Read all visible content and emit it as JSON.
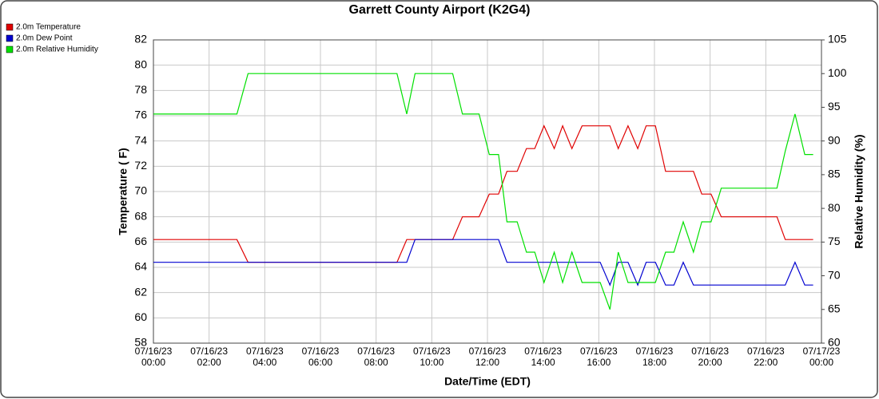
{
  "chart_data": {
    "type": "line",
    "title": "Garrett County Airport (K2G4)",
    "xlabel": "Date/Time (EDT)",
    "ylabel": "Temperature ( F)",
    "y2label": "Relative Humidity (%)",
    "legend": "top-left",
    "grid": true,
    "x": [
      "07/16/23 00:00",
      "07/16/23 03:00",
      "07/16/23 03:24",
      "07/16/23 08:45",
      "07/16/23 09:06",
      "07/16/23 09:24",
      "07/16/23 10:45",
      "07/16/23 11:06",
      "07/16/23 11:42",
      "07/16/23 12:04",
      "07/16/23 12:24",
      "07/16/23 12:42",
      "07/16/23 13:04",
      "07/16/23 13:24",
      "07/16/23 13:42",
      "07/16/23 14:02",
      "07/16/23 14:24",
      "07/16/23 14:42",
      "07/16/23 15:02",
      "07/16/23 15:24",
      "07/16/23 16:03",
      "07/16/23 16:24",
      "07/16/23 16:42",
      "07/16/23 17:03",
      "07/16/23 17:24",
      "07/16/23 17:42",
      "07/16/23 18:02",
      "07/16/23 18:24",
      "07/16/23 18:42",
      "07/16/23 19:02",
      "07/16/23 19:24",
      "07/16/23 19:42",
      "07/16/23 20:02",
      "07/16/23 20:24",
      "07/16/23 22:24",
      "07/16/23 22:42",
      "07/16/23 23:03",
      "07/16/23 23:24",
      "07/16/23 23:42"
    ],
    "series": [
      {
        "name": "2.0m Temperature",
        "color": "#e00000",
        "values": [
          66.2,
          66.2,
          64.4,
          64.4,
          66.2,
          66.2,
          66.2,
          68,
          68,
          69.8,
          69.8,
          71.6,
          71.6,
          73.4,
          73.4,
          75.2,
          73.4,
          75.2,
          73.4,
          75.2,
          75.2,
          75.2,
          73.4,
          75.2,
          73.4,
          75.2,
          75.2,
          71.6,
          71.6,
          71.6,
          71.6,
          69.8,
          69.8,
          68,
          68,
          66.2,
          66.2,
          66.2,
          66.2
        ]
      },
      {
        "name": "2.0m Dew Point",
        "color": "#0000d0",
        "values": [
          64.4,
          64.4,
          64.4,
          64.4,
          64.4,
          66.2,
          66.2,
          66.2,
          66.2,
          66.2,
          66.2,
          64.4,
          64.4,
          64.4,
          64.4,
          64.4,
          64.4,
          64.4,
          64.4,
          64.4,
          64.4,
          62.6,
          64.4,
          64.4,
          62.6,
          64.4,
          64.4,
          62.6,
          62.6,
          64.4,
          62.6,
          62.6,
          62.6,
          62.6,
          62.6,
          62.6,
          64.4,
          62.6,
          62.6
        ]
      },
      {
        "name": "2.0m Relative Humidity",
        "color": "#00e000",
        "axis": "y2",
        "values": [
          94,
          94,
          100,
          100,
          94,
          100,
          100,
          94,
          94,
          88,
          88,
          78,
          78,
          73.5,
          73.5,
          69,
          73.5,
          69,
          73.5,
          69,
          69,
          65,
          73.5,
          69,
          69,
          69,
          69,
          73.5,
          73.5,
          78,
          73.5,
          78,
          78,
          83,
          83,
          88.5,
          94,
          88,
          88
        ]
      }
    ],
    "xlim": [
      "07/16/23 00:00",
      "07/17/23 00:00"
    ],
    "xticks": [
      "07/16/23 00:00",
      "07/16/23 02:00",
      "07/16/23 04:00",
      "07/16/23 06:00",
      "07/16/23 08:00",
      "07/16/23 10:00",
      "07/16/23 12:00",
      "07/16/23 14:00",
      "07/16/23 16:00",
      "07/16/23 18:00",
      "07/16/23 20:00",
      "07/16/23 22:00",
      "07/17/23 00:00"
    ],
    "ylim": [
      58,
      82
    ],
    "yticks": [
      58,
      60,
      62,
      64,
      66,
      68,
      70,
      72,
      74,
      76,
      78,
      80,
      82
    ],
    "y2lim": [
      60,
      105
    ],
    "y2ticks": [
      60,
      65,
      70,
      75,
      80,
      85,
      90,
      95,
      100,
      105
    ]
  }
}
